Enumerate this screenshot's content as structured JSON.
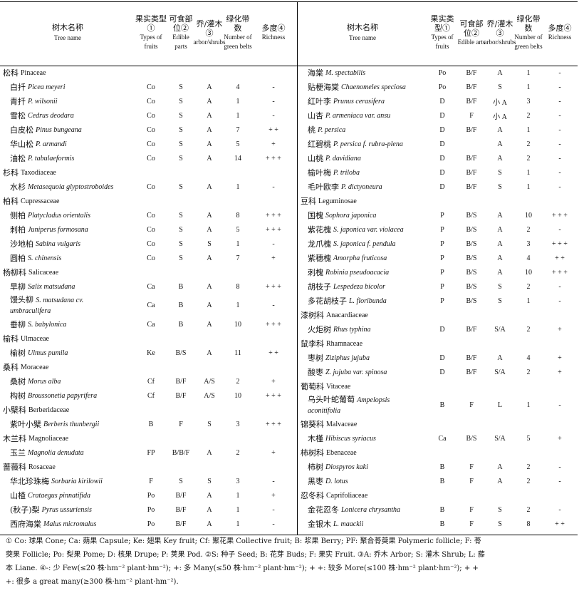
{
  "header": {
    "name_cn": "树木名称",
    "name_en": "Tree name",
    "fruit_cn": "果实类型①",
    "fruit_en": "Types of fruits",
    "edible_cn": "可食部位②",
    "edible_en": "Edible parts",
    "edible_en_right": "Edible arts",
    "arbor_cn": "乔/灌木③",
    "arbor_en": "arbor/shrubs",
    "belts_cn": "绿化带数",
    "belts_en": "Number of green belts",
    "rich_cn": "多度④",
    "rich_en": "Richness"
  },
  "left": [
    {
      "fam": "松科",
      "la": "Pinaceae"
    },
    {
      "cn": "白扦",
      "sci": "Picea meyeri",
      "f": "Co",
      "e": "S",
      "a": "A",
      "n": "4",
      "r": "-"
    },
    {
      "cn": "青扦",
      "sci": "P. wilsonii",
      "f": "Co",
      "e": "S",
      "a": "A",
      "n": "1",
      "r": "-"
    },
    {
      "cn": "雪松",
      "sci": "Cedrus deodara",
      "f": "Co",
      "e": "S",
      "a": "A",
      "n": "1",
      "r": "-"
    },
    {
      "cn": "白皮松",
      "sci": "Pinus bungeana",
      "f": "Co",
      "e": "S",
      "a": "A",
      "n": "7",
      "r": "+ +"
    },
    {
      "cn": "华山松",
      "sci": "P. armandi",
      "f": "Co",
      "e": "S",
      "a": "A",
      "n": "5",
      "r": "+"
    },
    {
      "cn": "油松",
      "sci": "P. tabulaeformis",
      "f": "Co",
      "e": "S",
      "a": "A",
      "n": "14",
      "r": "+ + +"
    },
    {
      "fam": "杉科",
      "la": "Taxodiaceae"
    },
    {
      "cn": "水杉",
      "sci": "Metasequoia glyptostroboides",
      "f": "Co",
      "e": "S",
      "a": "A",
      "n": "1",
      "r": "-"
    },
    {
      "fam": "柏科",
      "la": "Cupressaceae"
    },
    {
      "cn": "侧柏",
      "sci": "Platycladus orientalis",
      "f": "Co",
      "e": "S",
      "a": "A",
      "n": "8",
      "r": "+ + +"
    },
    {
      "cn": "刺柏",
      "sci": "Juniperus formosana",
      "f": "Co",
      "e": "S",
      "a": "A",
      "n": "5",
      "r": "+ + +"
    },
    {
      "cn": "沙地柏",
      "sci": "Sabina vulgaris",
      "f": "Co",
      "e": "S",
      "a": "S",
      "n": "1",
      "r": "-"
    },
    {
      "cn": "圆柏",
      "sci": "S. chinensis",
      "f": "Co",
      "e": "S",
      "a": "A",
      "n": "7",
      "r": "+"
    },
    {
      "fam": "杨柳科",
      "la": "Salicaceae"
    },
    {
      "cn": "旱柳",
      "sci": "Salix matsudana",
      "f": "Ca",
      "e": "B",
      "a": "A",
      "n": "8",
      "r": "+ + +"
    },
    {
      "cn": "馒头柳",
      "sci": "S. matsudana cv.",
      "sci2": "umbraculifera",
      "f": "Ca",
      "e": "B",
      "a": "A",
      "n": "1",
      "r": "-",
      "tall": true
    },
    {
      "cn": "垂柳",
      "sci": "S. babylonica",
      "f": "Ca",
      "e": "B",
      "a": "A",
      "n": "10",
      "r": "+ + +"
    },
    {
      "fam": "榆科",
      "la": "Ulmaceae"
    },
    {
      "cn": "榆树",
      "sci": "Ulmus pumila",
      "f": "Ke",
      "e": "B/S",
      "a": "A",
      "n": "11",
      "r": "+ +"
    },
    {
      "fam": "桑科",
      "la": "Moraceae"
    },
    {
      "cn": "桑树",
      "sci": "Morus alba",
      "f": "Cf",
      "e": "B/F",
      "a": "A/S",
      "n": "2",
      "r": "+"
    },
    {
      "cn": "构树",
      "sci": "Broussonetia papyrifera",
      "f": "Cf",
      "e": "B/F",
      "a": "A/S",
      "n": "10",
      "r": "+ + +"
    },
    {
      "fam": "小檗科",
      "la": "Berberidaceae"
    },
    {
      "cn": "紫叶小檗",
      "sci": "Berberis thunbergii",
      "f": "B",
      "e": "F",
      "a": "S",
      "n": "3",
      "r": "+ + +"
    },
    {
      "fam": "木兰科",
      "la": "Magnoliaceae"
    },
    {
      "cn": "玉兰",
      "sci": "Magnolia denudata",
      "f": "FP",
      "e": "B/B/F",
      "a": "A",
      "n": "2",
      "r": "+"
    },
    {
      "fam": "蔷薇科",
      "la": "Rosaceae"
    },
    {
      "cn": "华北珍珠梅",
      "sci": "Sorbaria kirilowii",
      "f": "F",
      "e": "S",
      "a": "S",
      "n": "3",
      "r": "-"
    },
    {
      "cn": "山楂",
      "sci": "Crataegus pinnatifida",
      "f": "Po",
      "e": "B/F",
      "a": "A",
      "n": "1",
      "r": "+"
    },
    {
      "cn": "(秋子)梨",
      "sci": "Pyrus ussuriensis",
      "f": "Po",
      "e": "B/F",
      "a": "A",
      "n": "1",
      "r": "-"
    },
    {
      "cn": "西府海棠",
      "sci": "Malus micromalus",
      "f": "Po",
      "e": "B/F",
      "a": "A",
      "n": "1",
      "r": "-"
    }
  ],
  "right": [
    {
      "cn": "海棠",
      "sci": "M. spectabilis",
      "f": "Po",
      "e": "B/F",
      "a": "A",
      "n": "1",
      "r": "-"
    },
    {
      "cn": "贴梗海棠",
      "sci": "Chaenomeles speciosa",
      "f": "Po",
      "e": "B/F",
      "a": "S",
      "n": "1",
      "r": "-"
    },
    {
      "cn": "红叶李",
      "sci": "Prunus cerasifera",
      "f": "D",
      "e": "B/F",
      "a": "小 A",
      "n": "3",
      "r": "-"
    },
    {
      "cn": "山杏",
      "sci": "P. armeniaca var. ansu",
      "f": "D",
      "e": "F",
      "a": "小 A",
      "n": "2",
      "r": "-"
    },
    {
      "cn": "桃",
      "sci": "P. persica",
      "f": "D",
      "e": "B/F",
      "a": "A",
      "n": "1",
      "r": "-"
    },
    {
      "cn": "红碧桃",
      "sci": "P. persica f. rubra-plena",
      "f": "D",
      "e": "",
      "a": "A",
      "n": "2",
      "r": "-"
    },
    {
      "cn": "山桃",
      "sci": "P. davidiana",
      "f": "D",
      "e": "B/F",
      "a": "A",
      "n": "2",
      "r": "-"
    },
    {
      "cn": "榆叶梅",
      "sci": "P. triloba",
      "f": "D",
      "e": "B/F",
      "a": "S",
      "n": "1",
      "r": "-"
    },
    {
      "cn": "毛叶欧李",
      "sci": "P. dictyoneura",
      "f": "D",
      "e": "B/F",
      "a": "S",
      "n": "1",
      "r": "-"
    },
    {
      "fam": "豆科",
      "la": "Leguminosae"
    },
    {
      "cn": "国槐",
      "sci": "Sophora japonica",
      "f": "P",
      "e": "B/S",
      "a": "A",
      "n": "10",
      "r": "+ + +"
    },
    {
      "cn": "紫花槐",
      "sci": "S. japonica var. violacea",
      "f": "P",
      "e": "B/S",
      "a": "A",
      "n": "2",
      "r": "-"
    },
    {
      "cn": "龙爪槐",
      "sci": "S. japonica f. pendula",
      "f": "P",
      "e": "B/S",
      "a": "A",
      "n": "3",
      "r": "+ + +"
    },
    {
      "cn": "紫穗槐",
      "sci": "Amorpha fruticosa",
      "f": "P",
      "e": "B/S",
      "a": "A",
      "n": "4",
      "r": "+ +"
    },
    {
      "cn": "刺槐",
      "sci": "Robinia pseudoacacia",
      "f": "P",
      "e": "B/S",
      "a": "A",
      "n": "10",
      "r": "+ + +"
    },
    {
      "cn": "胡枝子",
      "sci": "Lespedeza bicolor",
      "f": "P",
      "e": "B/S",
      "a": "S",
      "n": "2",
      "r": "-"
    },
    {
      "cn": "多花胡枝子",
      "sci": "L. floribunda",
      "f": "P",
      "e": "B/S",
      "a": "S",
      "n": "1",
      "r": "-"
    },
    {
      "fam": "漆树科",
      "la": "Anacardiaceae"
    },
    {
      "cn": "火炬树",
      "sci": "Rhus typhina",
      "f": "D",
      "e": "B/F",
      "a": "S/A",
      "n": "2",
      "r": "+"
    },
    {
      "fam": "鼠李科",
      "la": "Rhamnaceae"
    },
    {
      "cn": "枣树",
      "sci": "Ziziphus jujuba",
      "f": "D",
      "e": "B/F",
      "a": "A",
      "n": "4",
      "r": "+"
    },
    {
      "cn": "酸枣",
      "sci": "Z. jujuba var. spinosa",
      "f": "D",
      "e": "B/F",
      "a": "S/A",
      "n": "2",
      "r": "+"
    },
    {
      "fam": "葡萄科",
      "la": "Vitaceae"
    },
    {
      "cn": "乌头叶蛇葡萄",
      "sci": "Ampelopsis",
      "sci2": "aconitifolia",
      "f": "B",
      "e": "F",
      "a": "L",
      "n": "1",
      "r": "-",
      "tall": true
    },
    {
      "fam": "锦葵科",
      "la": "Malvaceae"
    },
    {
      "cn": "木槿",
      "sci": "Hibiscus syriacus",
      "f": "Ca",
      "e": "B/S",
      "a": "S/A",
      "n": "5",
      "r": "+"
    },
    {
      "fam": "柿树科",
      "la": "Ebenaceae"
    },
    {
      "cn": "柿树",
      "sci": "Diospyros kaki",
      "f": "B",
      "e": "F",
      "a": "A",
      "n": "2",
      "r": "-"
    },
    {
      "cn": "黑枣",
      "sci": "D. lotus",
      "f": "B",
      "e": "F",
      "a": "A",
      "n": "2",
      "r": "-"
    },
    {
      "fam": "忍冬科",
      "la": "Caprifoliaceae"
    },
    {
      "cn": "金花忍冬",
      "sci": "Lonicera chrysantha",
      "f": "B",
      "e": "F",
      "a": "S",
      "n": "2",
      "r": "-"
    },
    {
      "cn": "金银木",
      "sci": "L. maackii",
      "f": "B",
      "e": "F",
      "a": "S",
      "n": "8",
      "r": "+ +"
    }
  ],
  "footnote": {
    "line1": "① Co: 球果 Cone; Ca: 蒴果 Capsule; Ke: 翅果 Key fruit; Cf: 聚花果 Collective fruit; B: 浆果 Berry; PF: 聚合蓇葖果 Polymeric follicle; F: 蓇",
    "line2": "葖果 Follicle; Po: 梨果 Pome; D: 核果 Drupe; P: 荚果 Pod. ②S: 种子 Seed; B: 花芽 Buds; F: 果实 Fruit. ③A: 乔木 Arbor; S: 灌木 Shrub; L: 藤",
    "line3": "本 Liane. ④-: 少 Few(≤20 株·hm⁻² plant·hm⁻²); +: 多 Many(≤50 株·hm⁻² plant·hm⁻²); + +: 较多 More(≤100 株·hm⁻² plant·hm⁻²); + +",
    "line4": "+: 很多 a great many(≥300 株·hm⁻² plant·hm⁻²)."
  }
}
